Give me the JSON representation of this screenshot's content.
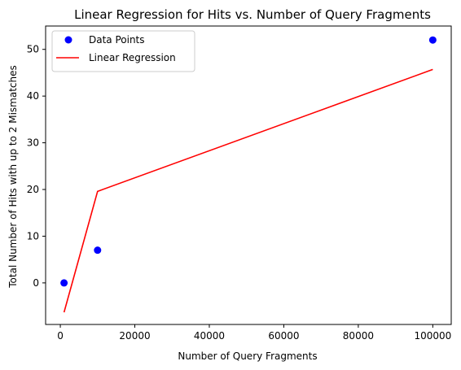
{
  "chart_data": {
    "type": "scatter",
    "title": "Linear Regression for Hits vs. Number of Query Fragments",
    "xlabel": "Number of Query Fragments",
    "ylabel": "Total Number of Hits with up to 2 Mismatches",
    "xlim": [
      -3950,
      104950
    ],
    "ylim": [
      -8.9,
      55.0
    ],
    "x_ticks": [
      0,
      20000,
      40000,
      60000,
      80000,
      100000
    ],
    "y_ticks": [
      0,
      10,
      20,
      30,
      40,
      50
    ],
    "grid": false,
    "legend_position": "upper-left",
    "series": [
      {
        "name": "Data Points",
        "kind": "scatter",
        "color": "#0000ff",
        "points": [
          {
            "x": 1000,
            "y": 0
          },
          {
            "x": 10000,
            "y": 7
          },
          {
            "x": 100000,
            "y": 52
          }
        ]
      },
      {
        "name": "Linear Regression",
        "kind": "line",
        "color": "#ff0000",
        "points": [
          {
            "x": 1000,
            "y": -6.3
          },
          {
            "x": 10000,
            "y": 19.6
          },
          {
            "x": 100000,
            "y": 45.7
          }
        ]
      }
    ]
  }
}
